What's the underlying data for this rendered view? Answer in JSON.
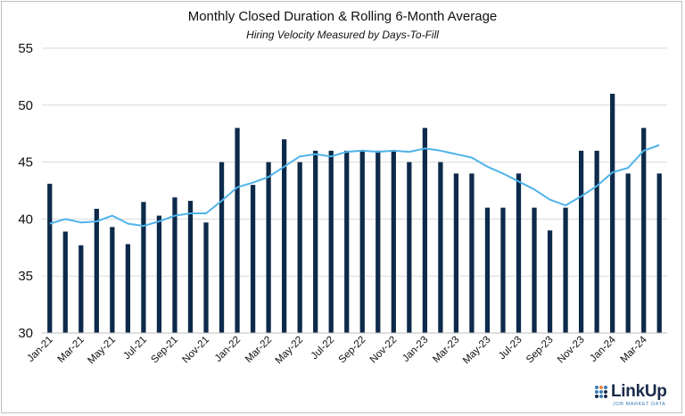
{
  "title": "Monthly Closed Duration & Rolling 6-Month Average",
  "subtitle": "Hiring Velocity Measured by Days-To-Fill",
  "logo": {
    "word": "LinkUp",
    "tagline": "JOB MARKET DATA"
  },
  "colors": {
    "bars": "#0d2a4a",
    "line": "#4fb3ea",
    "grid": "#d9d9d9",
    "axis": "#bfbfbf"
  },
  "chart_data": {
    "type": "bar",
    "categories": [
      "Jan-21",
      "Feb-21",
      "Mar-21",
      "Apr-21",
      "May-21",
      "Jun-21",
      "Jul-21",
      "Aug-21",
      "Sep-21",
      "Oct-21",
      "Nov-21",
      "Dec-21",
      "Jan-22",
      "Feb-22",
      "Mar-22",
      "Apr-22",
      "May-22",
      "Jun-22",
      "Jul-22",
      "Aug-22",
      "Sep-22",
      "Oct-22",
      "Nov-22",
      "Dec-22",
      "Jan-23",
      "Feb-23",
      "Mar-23",
      "Apr-23",
      "May-23",
      "Jun-23",
      "Jul-23",
      "Aug-23",
      "Sep-23",
      "Oct-23",
      "Nov-23",
      "Dec-23",
      "Jan-24",
      "Feb-24",
      "Mar-24",
      "Apr-24"
    ],
    "tick_labels": [
      "Jan-21",
      "Mar-21",
      "May-21",
      "Jul-21",
      "Sep-21",
      "Nov-21",
      "Jan-22",
      "Mar-22",
      "May-22",
      "Jul-22",
      "Sep-22",
      "Nov-22",
      "Jan-23",
      "Mar-23",
      "May-23",
      "Jul-23",
      "Sep-23",
      "Nov-23",
      "Jan-24",
      "Mar-24"
    ],
    "series": [
      {
        "type": "bar",
        "values": [
          43.1,
          38.9,
          37.7,
          40.9,
          39.3,
          37.8,
          41.5,
          40.3,
          41.9,
          41.6,
          39.7,
          45.0,
          48.0,
          43.0,
          45.0,
          47.0,
          45.0,
          46.0,
          46.0,
          46.0,
          46.0,
          46.0,
          46.0,
          45.0,
          48.0,
          45.0,
          44.0,
          44.0,
          41.0,
          41.0,
          44.0,
          41.0,
          39.0,
          41.0,
          46.0,
          46.0,
          51.0,
          44.0,
          48.0,
          44.0
        ]
      },
      {
        "type": "line",
        "values": [
          39.6,
          40.0,
          39.7,
          39.8,
          40.3,
          39.6,
          39.4,
          39.8,
          40.3,
          40.5,
          40.5,
          41.6,
          42.8,
          43.2,
          43.7,
          44.6,
          45.5,
          45.7,
          45.5,
          45.9,
          46.0,
          45.9,
          46.0,
          45.9,
          46.2,
          46.0,
          45.7,
          45.4,
          44.6,
          44.0,
          43.3,
          42.6,
          41.7,
          41.2,
          42.0,
          42.9,
          44.1,
          44.5,
          46.0,
          46.5
        ]
      }
    ],
    "ylim": [
      30,
      55
    ],
    "yticks": [
      30,
      35,
      40,
      45,
      50,
      55
    ],
    "grid": true,
    "legend": "none"
  }
}
